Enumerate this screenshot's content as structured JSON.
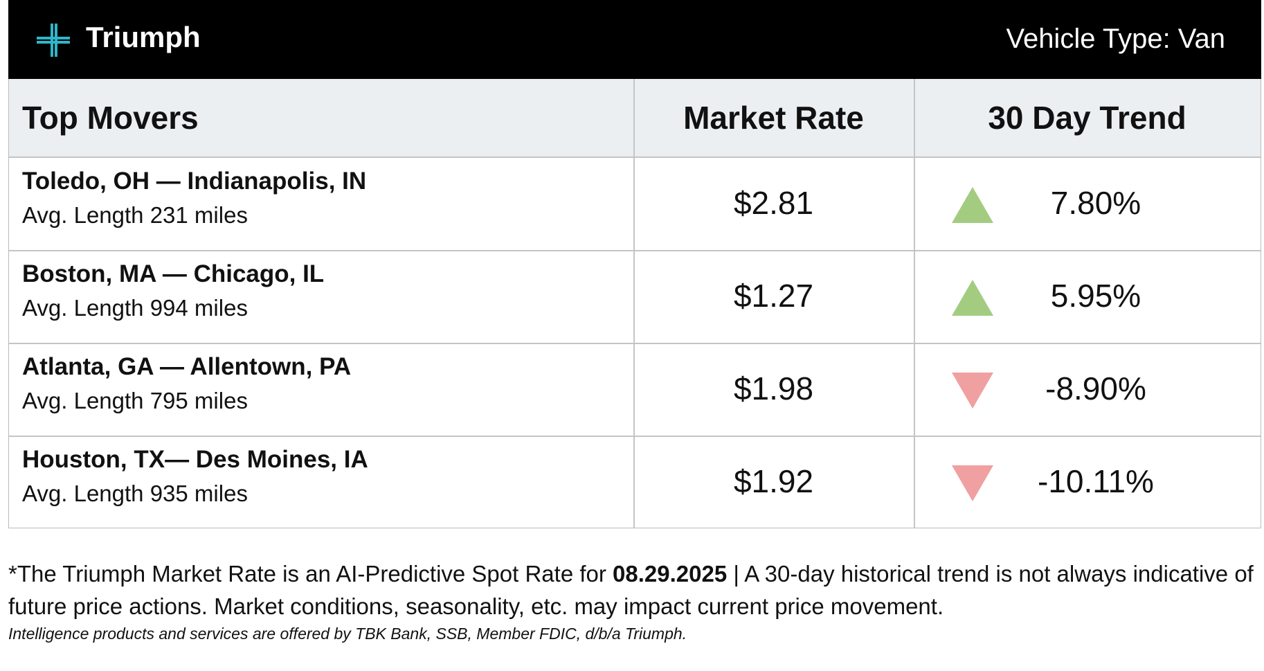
{
  "header": {
    "brand": "Triumph",
    "vehicle_type": "Vehicle Type: Van"
  },
  "table": {
    "columns": [
      "Top Movers",
      "Market Rate",
      "30 Day Trend"
    ],
    "rows": [
      {
        "route": "Toledo, OH — Indianapolis, IN",
        "length": "Avg. Length 231 miles",
        "rate": "$2.81",
        "trend": "7.80%",
        "direction": "up"
      },
      {
        "route": "Boston, MA — Chicago, IL",
        "length": "Avg. Length 994 miles",
        "rate": "$1.27",
        "trend": "5.95%",
        "direction": "up"
      },
      {
        "route": "Atlanta, GA — Allentown, PA",
        "length": "Avg. Length 795 miles",
        "rate": "$1.98",
        "trend": "-8.90%",
        "direction": "down"
      },
      {
        "route": "Houston, TX— Des Moines, IA",
        "length": "Avg. Length 935 miles",
        "rate": "$1.92",
        "trend": "-10.11%",
        "direction": "down"
      }
    ]
  },
  "footer": {
    "note_start": "*The Triumph Market Rate is an AI-Predictive Spot Rate for",
    "note_date": "08.29.2025",
    "note_end": "| A 30-day historical trend is not always indicative of future price actions. Market conditions, seasonality, etc. may impact current price movement.",
    "disclaimer": "Intelligence products and services are offered by TBK Bank, SSB, Member FDIC, d/b/a Triumph."
  }
}
